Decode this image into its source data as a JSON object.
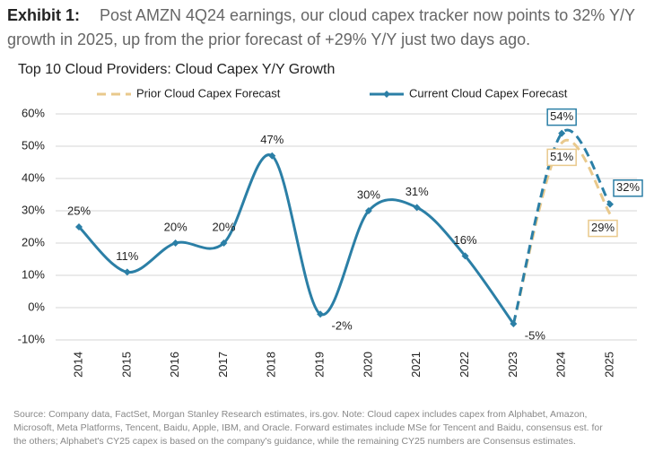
{
  "exhibit": {
    "label": "Exhibit 1:",
    "lines": [
      "Post AMZN 4Q24 earnings, our cloud capex tracker now points to 32% Y/Y",
      "growth in 2025, up from the prior forecast of +29% Y/Y just two days ago."
    ]
  },
  "chart_data": {
    "type": "line",
    "title": "Top 10 Cloud Providers: Cloud Capex Y/Y Growth",
    "categories": [
      "2014",
      "2015",
      "2016",
      "2017",
      "2018",
      "2019",
      "2020",
      "2021",
      "2022",
      "2023",
      "2024",
      "2025"
    ],
    "series": [
      {
        "name": "Prior Cloud Capex Forecast",
        "color": "#e9c98c",
        "style": "dashed",
        "values": [
          null,
          null,
          null,
          null,
          null,
          null,
          null,
          null,
          null,
          -5,
          51,
          29
        ],
        "value_labels": [
          null,
          null,
          null,
          null,
          null,
          null,
          null,
          null,
          null,
          null,
          "51%",
          "29%"
        ]
      },
      {
        "name": "Current Cloud Capex Forecast",
        "color": "#2b7fa6",
        "style": "solid",
        "dashed_from": "2023",
        "values": [
          25,
          11,
          20,
          20,
          47,
          -2,
          30,
          31,
          16,
          -5,
          54,
          32
        ],
        "value_labels": [
          "25%",
          "11%",
          "20%",
          "20%",
          "47%",
          "-2%",
          "30%",
          "31%",
          "16%",
          "-5%",
          "54%",
          "32%"
        ]
      }
    ],
    "ylim": [
      -10,
      60
    ],
    "yticks": [
      {
        "value": -10,
        "label": "-10%"
      },
      {
        "value": 0,
        "label": "0%"
      },
      {
        "value": 10,
        "label": "10%"
      },
      {
        "value": 20,
        "label": "20%"
      },
      {
        "value": 30,
        "label": "30%"
      },
      {
        "value": 40,
        "label": "40%"
      },
      {
        "value": 50,
        "label": "50%"
      },
      {
        "value": 60,
        "label": "60%"
      }
    ],
    "grid": true,
    "legend": "top"
  },
  "source": [
    "Source: Company data, FactSet, Morgan Stanley Research estimates, irs.gov. Note: Cloud capex includes capex from Alphabet, Amazon,",
    "Microsoft, Meta Platforms, Tencent, Baidu, Apple, IBM, and Oracle. Forward estimates include MSe for Tencent and Baidu, consensus est. for",
    "the others; Alphabet's CY25 capex is based on the company's guidance, while the remaining CY25 numbers are Consensus estimates."
  ]
}
